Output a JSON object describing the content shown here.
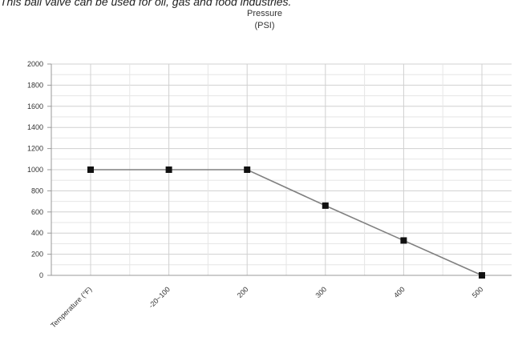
{
  "caption": "This ball valve can be used for oil, gas and food industries.",
  "chart_data": {
    "type": "line",
    "title": "Pressure",
    "subtitle": "(PSI)",
    "xlabel": "",
    "ylabel": "",
    "categories": [
      "Temperature (°F)",
      "-20~100",
      "200",
      "300",
      "400",
      "500"
    ],
    "series": [
      {
        "values": [
          1000,
          1000,
          1000,
          660,
          330,
          0
        ]
      }
    ],
    "ylim": [
      0,
      2000
    ],
    "yticks": [
      0,
      200,
      400,
      600,
      800,
      1000,
      1200,
      1400,
      1600,
      1800,
      2000
    ],
    "grid": true,
    "colors": {
      "line": "#808080",
      "marker": "#111111",
      "grid": "#d0d0d0",
      "axis": "#999999"
    }
  }
}
